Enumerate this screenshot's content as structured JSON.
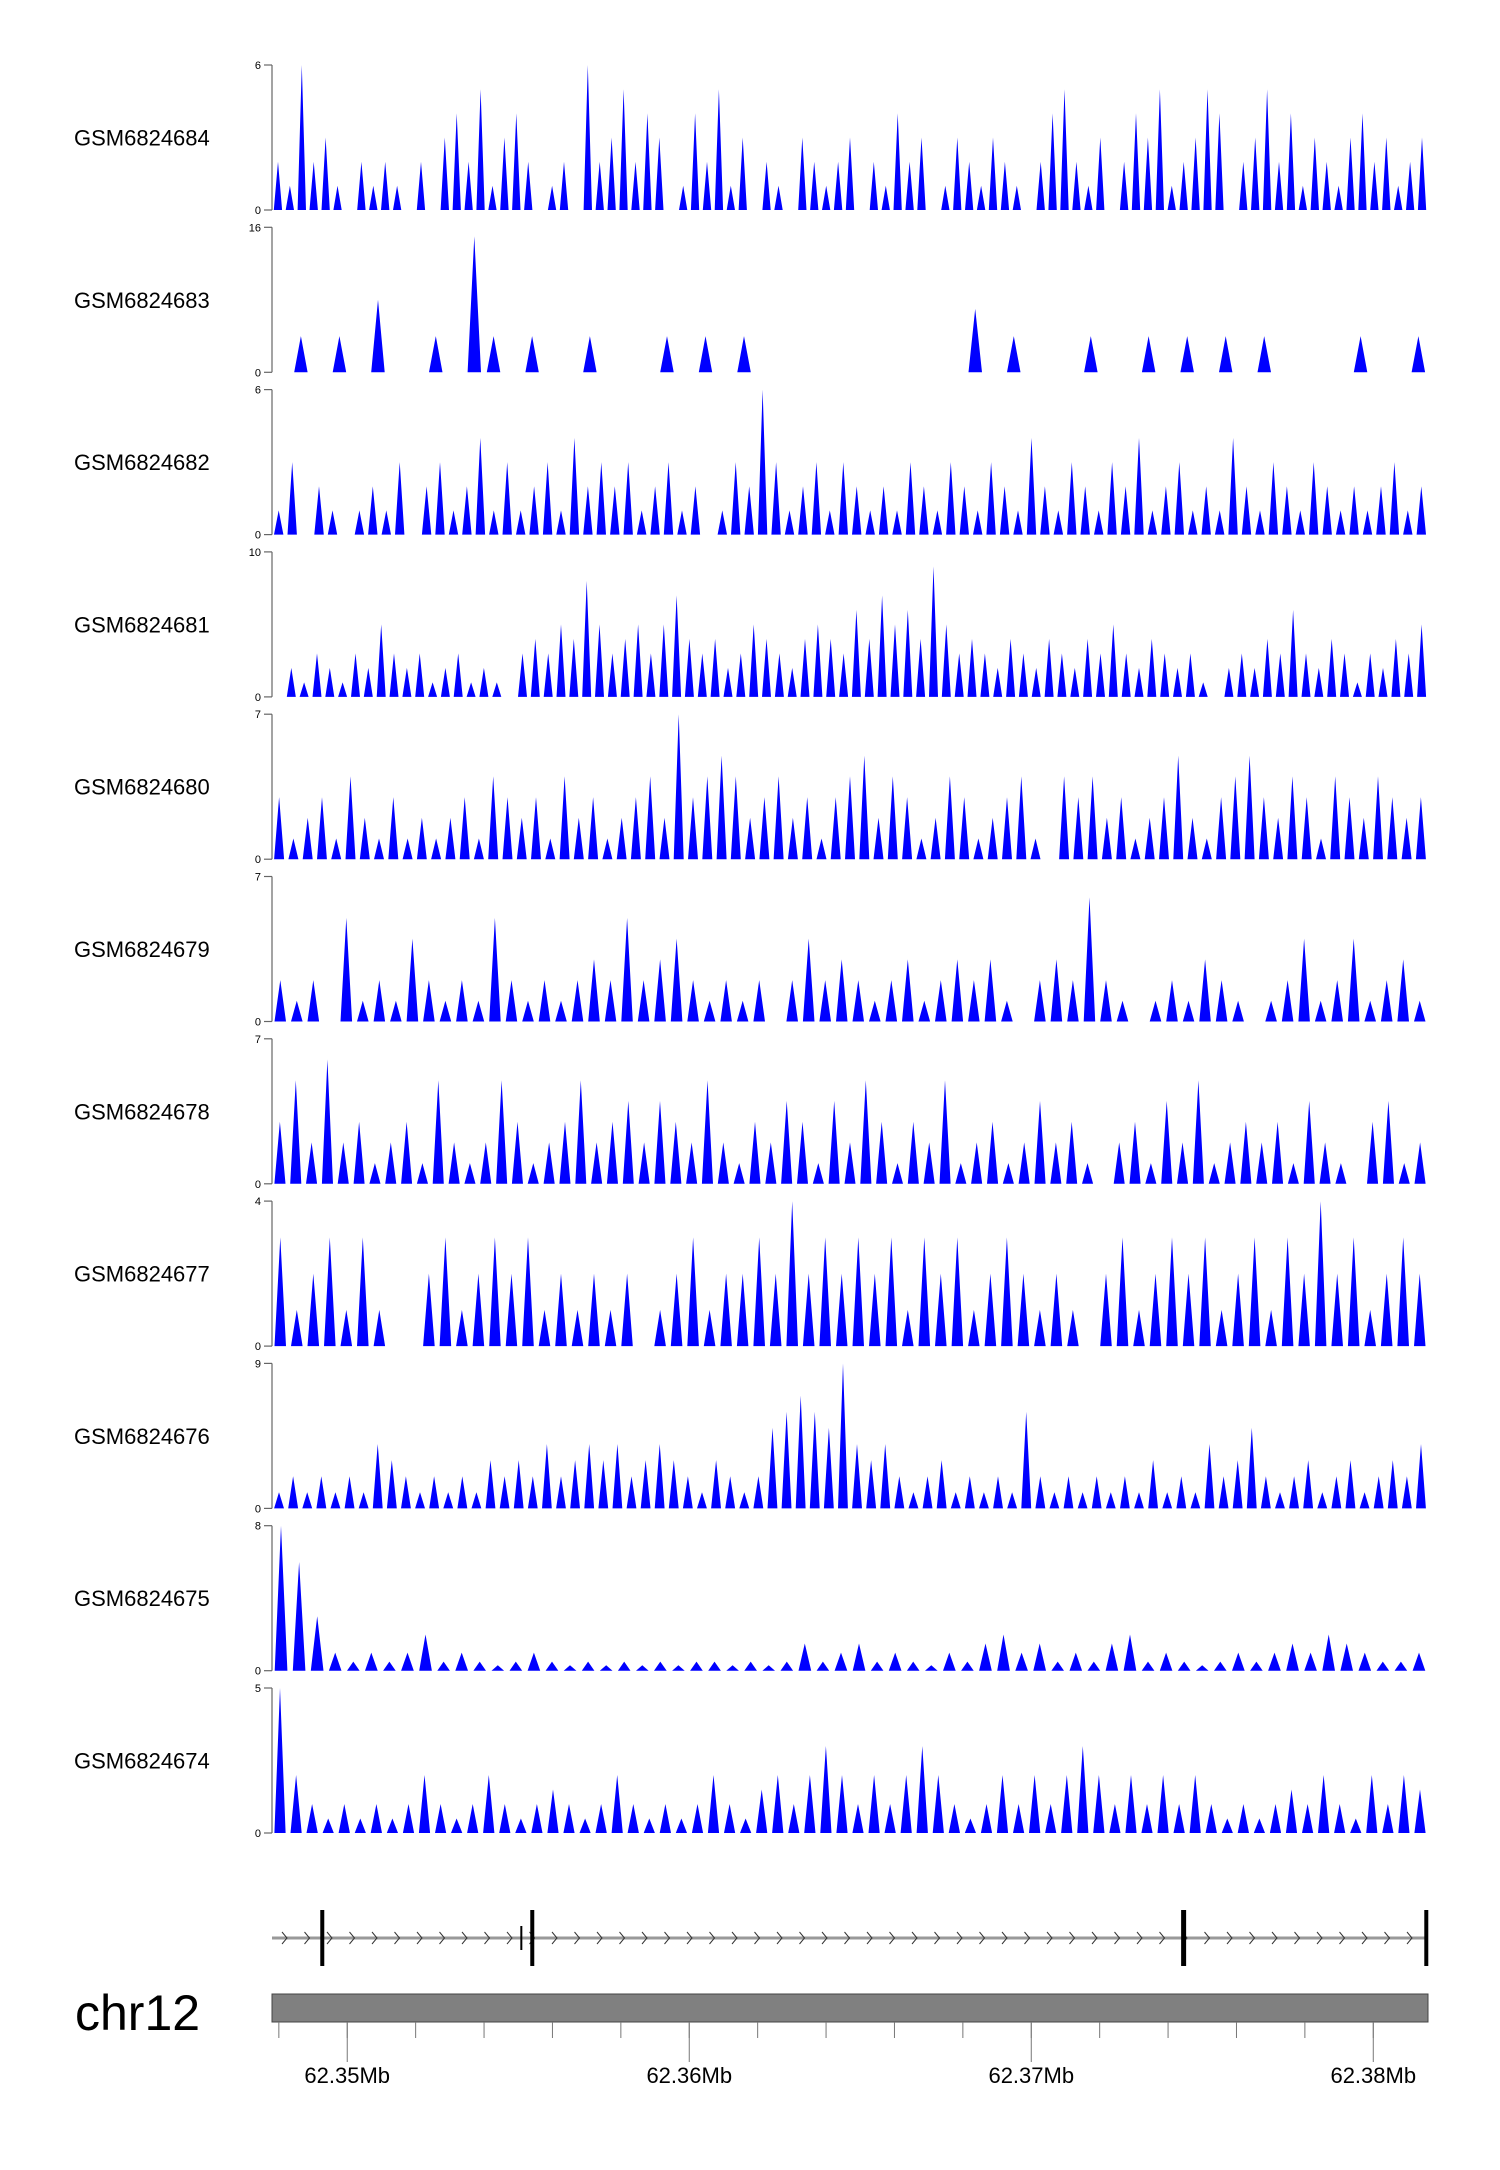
{
  "chart_data": {
    "type": "area",
    "chromosome": "chr12",
    "xlim_mb": [
      62.3478,
      62.3816
    ],
    "fill_color": "#0000ff",
    "axis_ticks": [
      "62.35Mb",
      "62.36Mb",
      "62.37Mb",
      "62.38Mb"
    ],
    "axis_tick_values_mb": [
      62.35,
      62.36,
      62.37,
      62.38
    ],
    "gene_exons_mb": [
      62.34927,
      62.35509,
      62.35541,
      62.37444,
      62.38155
    ],
    "tracks": [
      {
        "name": "GSM6824684",
        "ylim": [
          0,
          6
        ],
        "values": [
          2,
          1,
          6,
          2,
          3,
          1,
          0,
          2,
          1,
          2,
          1,
          0,
          2,
          0,
          3,
          4,
          2,
          5,
          1,
          3,
          4,
          2,
          0,
          1,
          2,
          0,
          6,
          2,
          3,
          5,
          2,
          4,
          3,
          0,
          1,
          4,
          2,
          5,
          1,
          3,
          0,
          2,
          1,
          0,
          3,
          2,
          1,
          2,
          3,
          0,
          2,
          1,
          4,
          2,
          3,
          0,
          1,
          3,
          2,
          1,
          3,
          2,
          1,
          0,
          2,
          4,
          5,
          2,
          1,
          3,
          0,
          2,
          4,
          3,
          5,
          1,
          2,
          3,
          5,
          4,
          0,
          2,
          3,
          5,
          2,
          4,
          1,
          3,
          2,
          1,
          3,
          4,
          2,
          3,
          1,
          2,
          3
        ]
      },
      {
        "name": "GSM6824683",
        "ylim": [
          0,
          16
        ],
        "values": [
          0,
          4,
          0,
          4,
          0,
          8,
          0,
          0,
          4,
          0,
          15,
          4,
          0,
          4,
          0,
          0,
          4,
          0,
          0,
          0,
          4,
          0,
          4,
          0,
          4,
          0,
          0,
          0,
          0,
          0,
          0,
          0,
          0,
          0,
          0,
          0,
          7,
          0,
          4,
          0,
          0,
          0,
          4,
          0,
          0,
          4,
          0,
          4,
          0,
          4,
          0,
          4,
          0,
          0,
          0,
          0,
          4,
          0,
          0,
          4
        ]
      },
      {
        "name": "GSM6824682",
        "ylim": [
          0,
          6
        ],
        "values": [
          1,
          3,
          0,
          2,
          1,
          0,
          1,
          2,
          1,
          3,
          0,
          2,
          3,
          1,
          2,
          4,
          1,
          3,
          1,
          2,
          3,
          1,
          4,
          2,
          3,
          2,
          3,
          1,
          2,
          3,
          1,
          2,
          0,
          1,
          3,
          2,
          6,
          3,
          1,
          2,
          3,
          1,
          3,
          2,
          1,
          2,
          1,
          3,
          2,
          1,
          3,
          2,
          1,
          3,
          2,
          1,
          4,
          2,
          1,
          3,
          2,
          1,
          3,
          2,
          4,
          1,
          2,
          3,
          1,
          2,
          1,
          4,
          2,
          1,
          3,
          2,
          1,
          3,
          2,
          1,
          2,
          1,
          2,
          3,
          1,
          2
        ]
      },
      {
        "name": "GSM6824681",
        "ylim": [
          0,
          10
        ],
        "values": [
          0,
          2,
          1,
          3,
          2,
          1,
          3,
          2,
          5,
          3,
          2,
          3,
          1,
          2,
          3,
          1,
          2,
          1,
          0,
          3,
          4,
          3,
          5,
          4,
          8,
          5,
          3,
          4,
          5,
          3,
          5,
          7,
          4,
          3,
          4,
          2,
          3,
          5,
          4,
          3,
          2,
          4,
          5,
          4,
          3,
          6,
          4,
          7,
          5,
          6,
          4,
          9,
          5,
          3,
          4,
          3,
          2,
          4,
          3,
          2,
          4,
          3,
          2,
          4,
          3,
          5,
          3,
          2,
          4,
          3,
          2,
          3,
          1,
          0,
          2,
          3,
          2,
          4,
          3,
          6,
          3,
          2,
          4,
          3,
          1,
          3,
          2,
          4,
          3,
          5
        ]
      },
      {
        "name": "GSM6824680",
        "ylim": [
          0,
          7
        ],
        "values": [
          3,
          1,
          2,
          3,
          1,
          4,
          2,
          1,
          3,
          1,
          2,
          1,
          2,
          3,
          1,
          4,
          3,
          2,
          3,
          1,
          4,
          2,
          3,
          1,
          2,
          3,
          4,
          2,
          7,
          3,
          4,
          5,
          4,
          2,
          3,
          4,
          2,
          3,
          1,
          3,
          4,
          5,
          2,
          4,
          3,
          1,
          2,
          4,
          3,
          1,
          2,
          3,
          4,
          1,
          0,
          4,
          3,
          4,
          2,
          3,
          1,
          2,
          3,
          5,
          2,
          1,
          3,
          4,
          5,
          3,
          2,
          4,
          3,
          1,
          4,
          3,
          2,
          4,
          3,
          2,
          3
        ]
      },
      {
        "name": "GSM6824679",
        "ylim": [
          0,
          7
        ],
        "values": [
          2,
          1,
          2,
          0,
          5,
          1,
          2,
          1,
          4,
          2,
          1,
          2,
          1,
          5,
          2,
          1,
          2,
          1,
          2,
          3,
          2,
          5,
          2,
          3,
          4,
          2,
          1,
          2,
          1,
          2,
          0,
          2,
          4,
          2,
          3,
          2,
          1,
          2,
          3,
          1,
          2,
          3,
          2,
          3,
          1,
          0,
          2,
          3,
          2,
          6,
          2,
          1,
          0,
          1,
          2,
          1,
          3,
          2,
          1,
          0,
          1,
          2,
          4,
          1,
          2,
          4,
          1,
          2,
          3,
          1
        ]
      },
      {
        "name": "GSM6824678",
        "ylim": [
          0,
          7
        ],
        "values": [
          3,
          5,
          2,
          6,
          2,
          3,
          1,
          2,
          3,
          1,
          5,
          2,
          1,
          2,
          5,
          3,
          1,
          2,
          3,
          5,
          2,
          3,
          4,
          2,
          4,
          3,
          2,
          5,
          2,
          1,
          3,
          2,
          4,
          3,
          1,
          4,
          2,
          5,
          3,
          1,
          3,
          2,
          5,
          1,
          2,
          3,
          1,
          2,
          4,
          2,
          3,
          1,
          0,
          2,
          3,
          1,
          4,
          2,
          5,
          1,
          2,
          3,
          2,
          3,
          1,
          4,
          2,
          1,
          0,
          3,
          4,
          1,
          2
        ]
      },
      {
        "name": "GSM6824677",
        "ylim": [
          0,
          4
        ],
        "values": [
          3,
          1,
          2,
          3,
          1,
          3,
          1,
          0,
          0,
          2,
          3,
          1,
          2,
          3,
          2,
          3,
          1,
          2,
          1,
          2,
          1,
          2,
          0,
          1,
          2,
          3,
          1,
          2,
          2,
          3,
          2,
          4,
          2,
          3,
          2,
          3,
          2,
          3,
          1,
          3,
          2,
          3,
          1,
          2,
          3,
          2,
          1,
          2,
          1,
          0,
          2,
          3,
          1,
          2,
          3,
          2,
          3,
          1,
          2,
          3,
          1,
          3,
          2,
          4,
          2,
          3,
          1,
          2,
          3,
          2
        ]
      },
      {
        "name": "GSM6824676",
        "ylim": [
          0,
          9
        ],
        "values": [
          1,
          2,
          1,
          2,
          1,
          2,
          1,
          4,
          3,
          2,
          1,
          2,
          1,
          2,
          1,
          3,
          2,
          3,
          2,
          4,
          2,
          3,
          4,
          3,
          4,
          2,
          3,
          4,
          3,
          2,
          1,
          3,
          2,
          1,
          2,
          5,
          6,
          7,
          6,
          5,
          9,
          4,
          3,
          4,
          2,
          1,
          2,
          3,
          1,
          2,
          1,
          2,
          1,
          6,
          2,
          1,
          2,
          1,
          2,
          1,
          2,
          1,
          3,
          1,
          2,
          1,
          4,
          2,
          3,
          5,
          2,
          1,
          2,
          3,
          1,
          2,
          3,
          1,
          2,
          3,
          2,
          4
        ]
      },
      {
        "name": "GSM6824675",
        "ylim": [
          0,
          8
        ],
        "values": [
          8,
          6,
          3,
          1,
          0.5,
          1,
          0.5,
          1,
          2,
          0.5,
          1,
          0.5,
          0.3,
          0.5,
          1,
          0.5,
          0.3,
          0.5,
          0.3,
          0.5,
          0.3,
          0.5,
          0.3,
          0.5,
          0.5,
          0.3,
          0.5,
          0.3,
          0.5,
          1.5,
          0.5,
          1,
          1.5,
          0.5,
          1,
          0.5,
          0.3,
          1,
          0.5,
          1.5,
          2,
          1,
          1.5,
          0.5,
          1,
          0.5,
          1.5,
          2,
          0.5,
          1,
          0.5,
          0.3,
          0.5,
          1,
          0.5,
          1,
          1.5,
          1,
          2,
          1.5,
          1,
          0.5,
          0.5,
          1
        ]
      },
      {
        "name": "GSM6824674",
        "ylim": [
          0,
          5
        ],
        "values": [
          5,
          2,
          1,
          0.5,
          1,
          0.5,
          1,
          0.5,
          1,
          2,
          1,
          0.5,
          1,
          2,
          1,
          0.5,
          1,
          1.5,
          1,
          0.5,
          1,
          2,
          1,
          0.5,
          1,
          0.5,
          1,
          2,
          1,
          0.5,
          1.5,
          2,
          1,
          2,
          3,
          2,
          1,
          2,
          1,
          2,
          3,
          2,
          1,
          0.5,
          1,
          2,
          1,
          2,
          1,
          2,
          3,
          2,
          1,
          2,
          1,
          2,
          1,
          2,
          1,
          0.5,
          1,
          0.5,
          1,
          1.5,
          1,
          2,
          1,
          0.5,
          2,
          1,
          2,
          1.5
        ]
      }
    ]
  }
}
